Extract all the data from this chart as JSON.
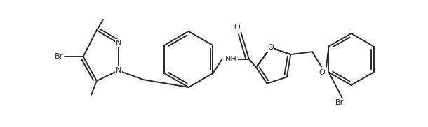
{
  "bg_color": "#ffffff",
  "line_color": "#2a2a2a",
  "line_width": 1.4,
  "dbo": 0.006,
  "figsize": [
    6.1,
    1.82
  ],
  "dpi": 100,
  "xlim": [
    0,
    6.1
  ],
  "ylim": [
    0,
    1.82
  ]
}
